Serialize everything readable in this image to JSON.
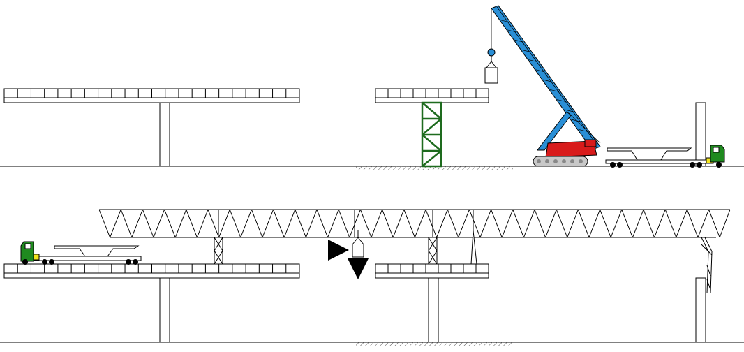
{
  "colors": {
    "background": "#ffffff",
    "line": "#000000",
    "hatch": "#555555",
    "crane_boom": "#2a8fd6",
    "crane_body": "#d81b1b",
    "crane_tracks": "#c8c8c8",
    "truck_cab": "#1f8a1f",
    "truck_bumper": "#f3e51c",
    "temporary_tower": "#1e6b1e",
    "launch_arrows": "#000000"
  },
  "icons": {
    "push_arrow": "right-arrow-icon",
    "lower_arrow": "down-arrow-icon"
  }
}
